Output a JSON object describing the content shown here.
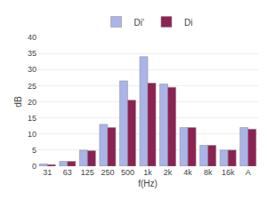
{
  "chart_data": {
    "type": "bar",
    "categories": [
      "31",
      "63",
      "125",
      "250",
      "500",
      "1k",
      "2k",
      "4k",
      "8k",
      "16k",
      "A"
    ],
    "series": [
      {
        "name": "Di'",
        "color": "#aab4e8",
        "values": [
          0.7,
          1.5,
          5.0,
          13.0,
          26.5,
          34.0,
          25.5,
          12.0,
          6.5,
          5.0,
          12.0
        ]
      },
      {
        "name": "Di",
        "color": "#8b2252",
        "values": [
          0.5,
          1.5,
          4.8,
          12.0,
          20.5,
          25.8,
          24.5,
          12.0,
          6.5,
          5.0,
          11.5
        ]
      }
    ],
    "xlabel": "f(Hz)",
    "ylabel": "dB",
    "ylim": [
      0,
      40
    ],
    "yticks": [
      0,
      5,
      10,
      15,
      20,
      25,
      30,
      35,
      40
    ],
    "grid": true,
    "legend": "top"
  }
}
